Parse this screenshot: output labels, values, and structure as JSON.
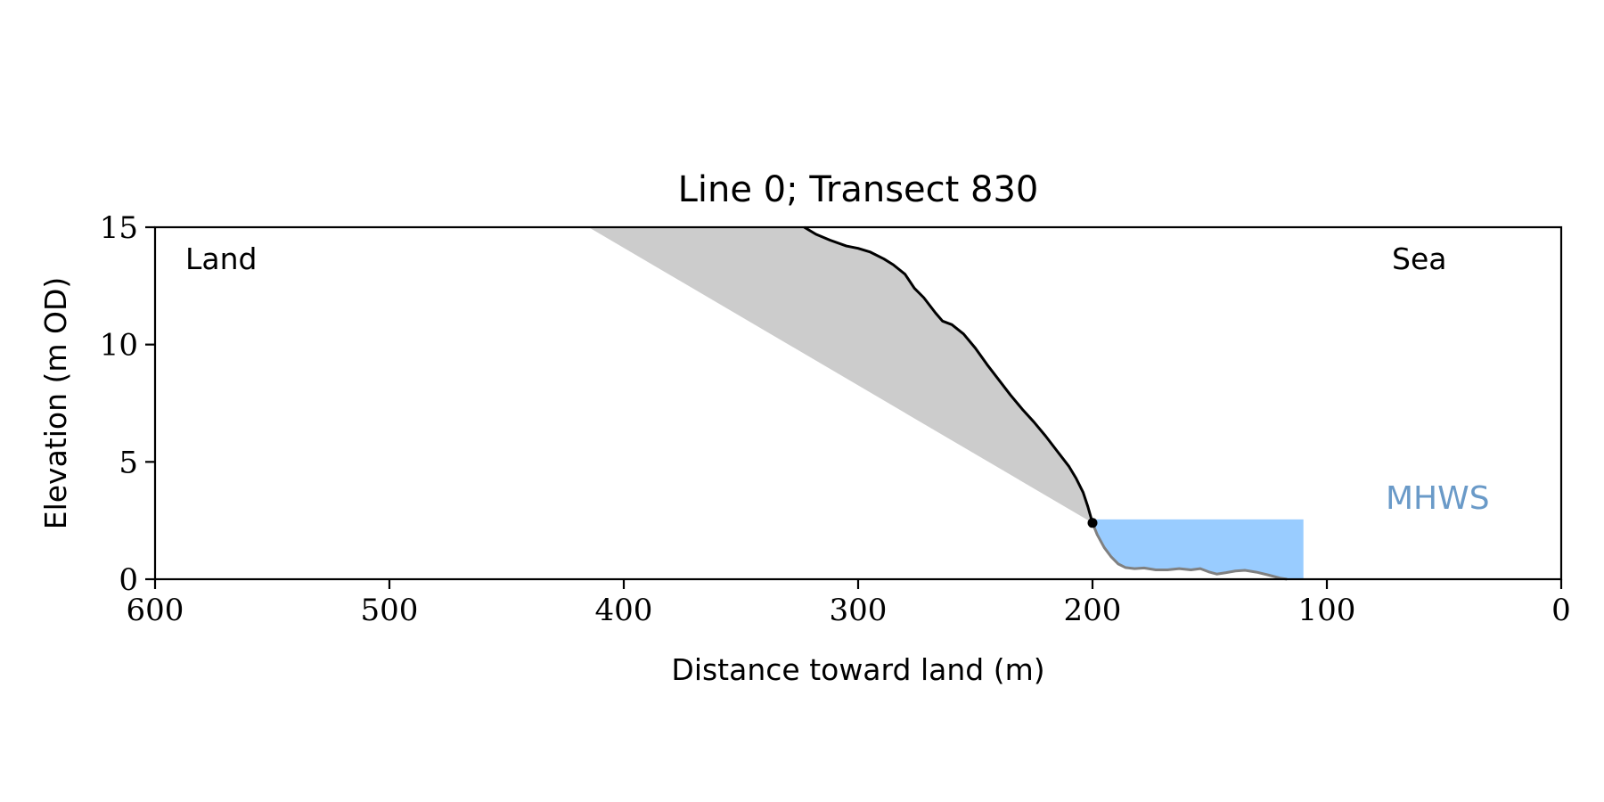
{
  "chart_data": {
    "type": "area",
    "title": "Line 0; Transect 830",
    "xlabel": "Distance toward land (m)",
    "ylabel": "Elevation (m OD)",
    "xlim": [
      600,
      0
    ],
    "ylim": [
      0,
      15
    ],
    "x_axis_reversed": true,
    "xticks": [
      600,
      500,
      400,
      300,
      200,
      100,
      0
    ],
    "yticks": [
      0,
      5,
      10,
      15
    ],
    "grid": false,
    "annotations": {
      "land": "Land",
      "sea": "Sea",
      "mhws": "MHWS"
    },
    "colors": {
      "profile_land": "#000000",
      "profile_sea": "#808080",
      "eroded_fill": "#cccccc",
      "water_fill": "#99ccff",
      "mhws_text": "#6a9ac8",
      "axis": "#000000"
    },
    "mhws_level": 2.55,
    "mhws_x_range": [
      200,
      110
    ],
    "toe_point": {
      "x": 200,
      "y": 2.4
    },
    "retreat_line": [
      {
        "x": 415,
        "y": 15
      },
      {
        "x": 200,
        "y": 2.4
      }
    ],
    "profile_land": [
      {
        "x": 323,
        "y": 15
      },
      {
        "x": 318,
        "y": 14.7
      },
      {
        "x": 312,
        "y": 14.45
      },
      {
        "x": 305,
        "y": 14.2
      },
      {
        "x": 300,
        "y": 14.1
      },
      {
        "x": 295,
        "y": 13.95
      },
      {
        "x": 289,
        "y": 13.65
      },
      {
        "x": 285,
        "y": 13.4
      },
      {
        "x": 280,
        "y": 13.0
      },
      {
        "x": 276,
        "y": 12.4
      },
      {
        "x": 272,
        "y": 12.0
      },
      {
        "x": 267,
        "y": 11.35
      },
      {
        "x": 264,
        "y": 11.0
      },
      {
        "x": 260,
        "y": 10.85
      },
      {
        "x": 255,
        "y": 10.45
      },
      {
        "x": 250,
        "y": 9.85
      },
      {
        "x": 245,
        "y": 9.15
      },
      {
        "x": 240,
        "y": 8.5
      },
      {
        "x": 235,
        "y": 7.85
      },
      {
        "x": 230,
        "y": 7.25
      },
      {
        "x": 225,
        "y": 6.7
      },
      {
        "x": 220,
        "y": 6.1
      },
      {
        "x": 215,
        "y": 5.45
      },
      {
        "x": 210,
        "y": 4.8
      },
      {
        "x": 207,
        "y": 4.3
      },
      {
        "x": 204,
        "y": 3.7
      },
      {
        "x": 202,
        "y": 3.1
      },
      {
        "x": 200,
        "y": 2.4
      }
    ],
    "profile_sea": [
      {
        "x": 200,
        "y": 2.4
      },
      {
        "x": 198,
        "y": 1.9
      },
      {
        "x": 195,
        "y": 1.35
      },
      {
        "x": 192,
        "y": 0.95
      },
      {
        "x": 189,
        "y": 0.65
      },
      {
        "x": 186,
        "y": 0.5
      },
      {
        "x": 182,
        "y": 0.45
      },
      {
        "x": 178,
        "y": 0.48
      },
      {
        "x": 173,
        "y": 0.4
      },
      {
        "x": 168,
        "y": 0.4
      },
      {
        "x": 163,
        "y": 0.45
      },
      {
        "x": 158,
        "y": 0.4
      },
      {
        "x": 154,
        "y": 0.45
      },
      {
        "x": 150,
        "y": 0.3
      },
      {
        "x": 147,
        "y": 0.22
      },
      {
        "x": 143,
        "y": 0.28
      },
      {
        "x": 139,
        "y": 0.35
      },
      {
        "x": 135,
        "y": 0.38
      },
      {
        "x": 130,
        "y": 0.3
      },
      {
        "x": 125,
        "y": 0.18
      },
      {
        "x": 120,
        "y": 0.05
      },
      {
        "x": 117,
        "y": 0.0
      }
    ]
  }
}
